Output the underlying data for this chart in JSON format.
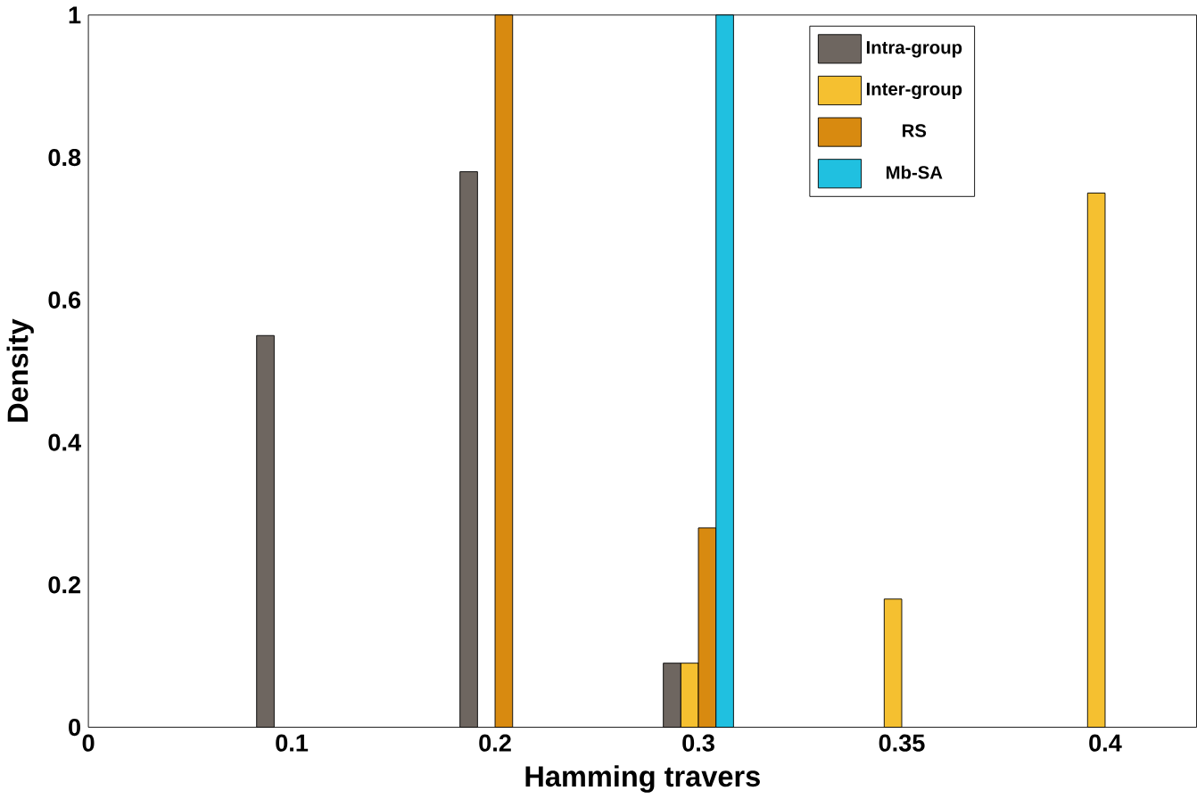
{
  "chart_data": {
    "type": "bar",
    "xlabel": "Hamming travers",
    "ylabel": "Density",
    "categories": [
      "0",
      "0.1",
      "0.2",
      "0.3",
      "0.35",
      "0.4"
    ],
    "series": [
      {
        "name": "Intra-group",
        "color": "#6e6660",
        "values": [
          null,
          0.55,
          0.78,
          0.09,
          null,
          null
        ]
      },
      {
        "name": "Inter-group",
        "color": "#f5c030",
        "values": [
          null,
          null,
          null,
          0.09,
          0.18,
          0.75
        ]
      },
      {
        "name": "RS",
        "color": "#d88a10",
        "values": [
          null,
          null,
          1,
          0.28,
          null,
          null
        ]
      },
      {
        "name": "Mb-SA",
        "color": "#20c0e0",
        "values": [
          null,
          null,
          null,
          1,
          null,
          null
        ]
      }
    ],
    "ylim": [
      0,
      1
    ],
    "yticks": [
      0,
      0.2,
      0.4,
      0.6,
      0.8,
      1
    ],
    "grid": false,
    "legend": "top right"
  }
}
